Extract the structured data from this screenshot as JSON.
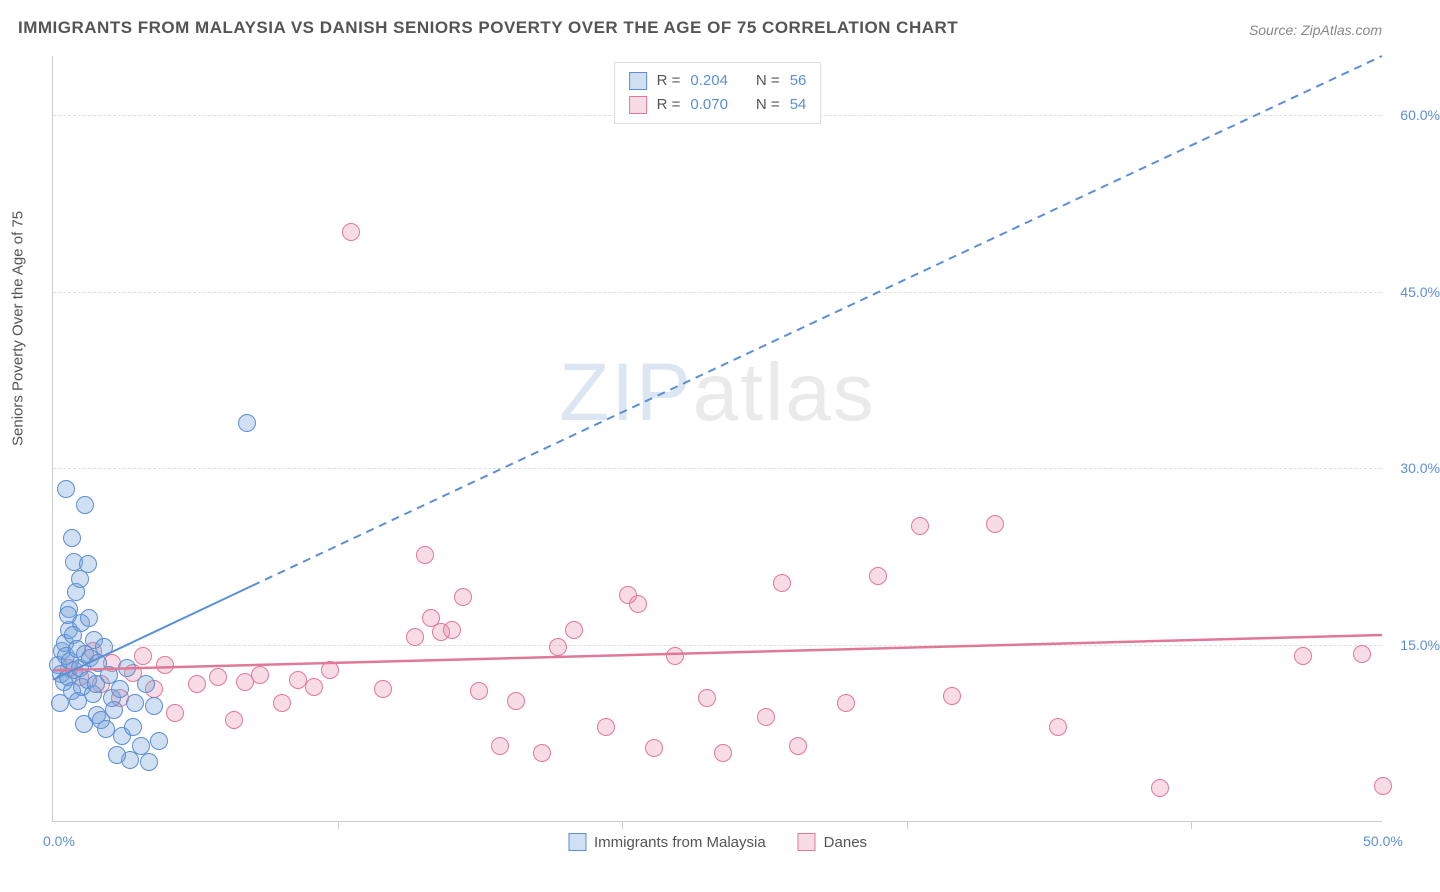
{
  "title": "IMMIGRANTS FROM MALAYSIA VS DANISH SENIORS POVERTY OVER THE AGE OF 75 CORRELATION CHART",
  "source": "Source: ZipAtlas.com",
  "yAxisLabel": "Seniors Poverty Over the Age of 75",
  "watermark": {
    "part1": "ZIP",
    "part2": "atlas"
  },
  "chart": {
    "type": "scatter",
    "background_color": "#ffffff",
    "grid_color": "#dddddd",
    "axis_color": "#cccccc",
    "tick_label_color": "#5b8fd6",
    "axis_label_color": "#555555",
    "marker_radius": 9,
    "xlim": [
      0,
      50
    ],
    "ylim": [
      0,
      65
    ],
    "x_ticks": [
      0,
      50
    ],
    "y_ticks": [
      15,
      30,
      45,
      60
    ],
    "y_tick_labels": [
      "15.0%",
      "30.0%",
      "45.0%",
      "60.0%"
    ],
    "x_tick_labels_map": {
      "0": "0.0%",
      "50": "50.0%"
    },
    "x_minor_ticks": [
      10.7,
      21.4,
      32.1,
      42.8
    ]
  },
  "series": [
    {
      "name": "Immigrants from Malaysia",
      "color_fill": "rgba(119,162,214,0.35)",
      "color_stroke": "#5b8fd6",
      "r_label": "R =",
      "r_value": "0.204",
      "n_label": "N =",
      "n_value": "56",
      "trend": {
        "x1": 0,
        "y1": 12.0,
        "x2": 7.5,
        "y2": 20.0,
        "extend_to_x": 50,
        "extend_to_y": 65,
        "dash": "8,6",
        "width": 2
      },
      "points": [
        [
          0.2,
          13.2
        ],
        [
          0.3,
          12.5
        ],
        [
          0.35,
          14.4
        ],
        [
          0.4,
          11.8
        ],
        [
          0.45,
          15.1
        ],
        [
          0.5,
          14.0
        ],
        [
          0.55,
          12.2
        ],
        [
          0.6,
          16.2
        ],
        [
          0.65,
          13.6
        ],
        [
          0.7,
          11.0
        ],
        [
          0.75,
          15.8
        ],
        [
          0.8,
          12.8
        ],
        [
          0.6,
          18.0
        ],
        [
          0.9,
          14.6
        ],
        [
          0.95,
          10.2
        ],
        [
          1.0,
          13.0
        ],
        [
          1.05,
          16.8
        ],
        [
          1.1,
          11.4
        ],
        [
          1.2,
          14.2
        ],
        [
          0.85,
          19.4
        ],
        [
          1.3,
          12.0
        ],
        [
          1.35,
          17.2
        ],
        [
          1.4,
          13.8
        ],
        [
          1.5,
          10.8
        ],
        [
          1.55,
          15.4
        ],
        [
          1.6,
          11.6
        ],
        [
          1.65,
          9.0
        ],
        [
          1.7,
          13.4
        ],
        [
          1.8,
          8.6
        ],
        [
          1.9,
          14.8
        ],
        [
          2.0,
          7.8
        ],
        [
          2.1,
          12.4
        ],
        [
          2.2,
          10.4
        ],
        [
          2.3,
          9.4
        ],
        [
          2.5,
          11.2
        ],
        [
          2.6,
          7.2
        ],
        [
          2.8,
          13.0
        ],
        [
          3.0,
          8.0
        ],
        [
          3.1,
          10.0
        ],
        [
          3.3,
          6.4
        ],
        [
          3.5,
          11.6
        ],
        [
          3.6,
          5.0
        ],
        [
          3.8,
          9.8
        ],
        [
          4.0,
          6.8
        ],
        [
          0.8,
          22.0
        ],
        [
          2.9,
          5.2
        ],
        [
          1.0,
          20.5
        ],
        [
          1.3,
          21.8
        ],
        [
          0.5,
          28.2
        ],
        [
          1.2,
          26.8
        ],
        [
          0.7,
          24.0
        ],
        [
          7.3,
          33.8
        ],
        [
          1.15,
          8.2
        ],
        [
          2.4,
          5.6
        ],
        [
          0.25,
          10.0
        ],
        [
          0.55,
          17.5
        ]
      ]
    },
    {
      "name": "Danes",
      "color_fill": "rgba(231,128,160,0.28)",
      "color_stroke": "#e07998",
      "r_label": "R =",
      "r_value": "0.070",
      "n_label": "N =",
      "n_value": "54",
      "trend": {
        "x1": 0,
        "y1": 12.8,
        "x2": 50,
        "y2": 15.8,
        "width": 2.5
      },
      "points": [
        [
          0.6,
          13.0
        ],
        [
          1.0,
          12.2
        ],
        [
          1.5,
          14.4
        ],
        [
          1.8,
          11.6
        ],
        [
          2.2,
          13.4
        ],
        [
          2.5,
          10.4
        ],
        [
          3.0,
          12.6
        ],
        [
          3.4,
          14.0
        ],
        [
          3.8,
          11.2
        ],
        [
          4.2,
          13.2
        ],
        [
          4.6,
          9.2
        ],
        [
          5.4,
          11.6
        ],
        [
          6.2,
          12.2
        ],
        [
          6.8,
          8.6
        ],
        [
          7.2,
          11.8
        ],
        [
          7.8,
          12.4
        ],
        [
          8.6,
          10.0
        ],
        [
          9.2,
          12.0
        ],
        [
          9.8,
          11.4
        ],
        [
          10.4,
          12.8
        ],
        [
          12.4,
          11.2
        ],
        [
          13.6,
          15.6
        ],
        [
          14.0,
          22.6
        ],
        [
          14.2,
          17.2
        ],
        [
          14.6,
          16.0
        ],
        [
          15.0,
          16.2
        ],
        [
          15.4,
          19.0
        ],
        [
          16.0,
          11.0
        ],
        [
          11.2,
          50.0
        ],
        [
          16.8,
          6.4
        ],
        [
          17.4,
          10.2
        ],
        [
          18.4,
          5.8
        ],
        [
          19.0,
          14.8
        ],
        [
          19.6,
          16.2
        ],
        [
          20.8,
          8.0
        ],
        [
          21.6,
          19.2
        ],
        [
          22.0,
          18.4
        ],
        [
          22.6,
          6.2
        ],
        [
          23.4,
          14.0
        ],
        [
          24.6,
          10.4
        ],
        [
          25.2,
          5.8
        ],
        [
          26.8,
          8.8
        ],
        [
          27.4,
          20.2
        ],
        [
          28.0,
          6.4
        ],
        [
          29.8,
          10.0
        ],
        [
          31.0,
          20.8
        ],
        [
          32.6,
          25.0
        ],
        [
          33.8,
          10.6
        ],
        [
          35.4,
          25.2
        ],
        [
          37.8,
          8.0
        ],
        [
          41.6,
          2.8
        ],
        [
          50.0,
          3.0
        ],
        [
          49.2,
          14.2
        ],
        [
          47.0,
          14.0
        ]
      ]
    }
  ]
}
